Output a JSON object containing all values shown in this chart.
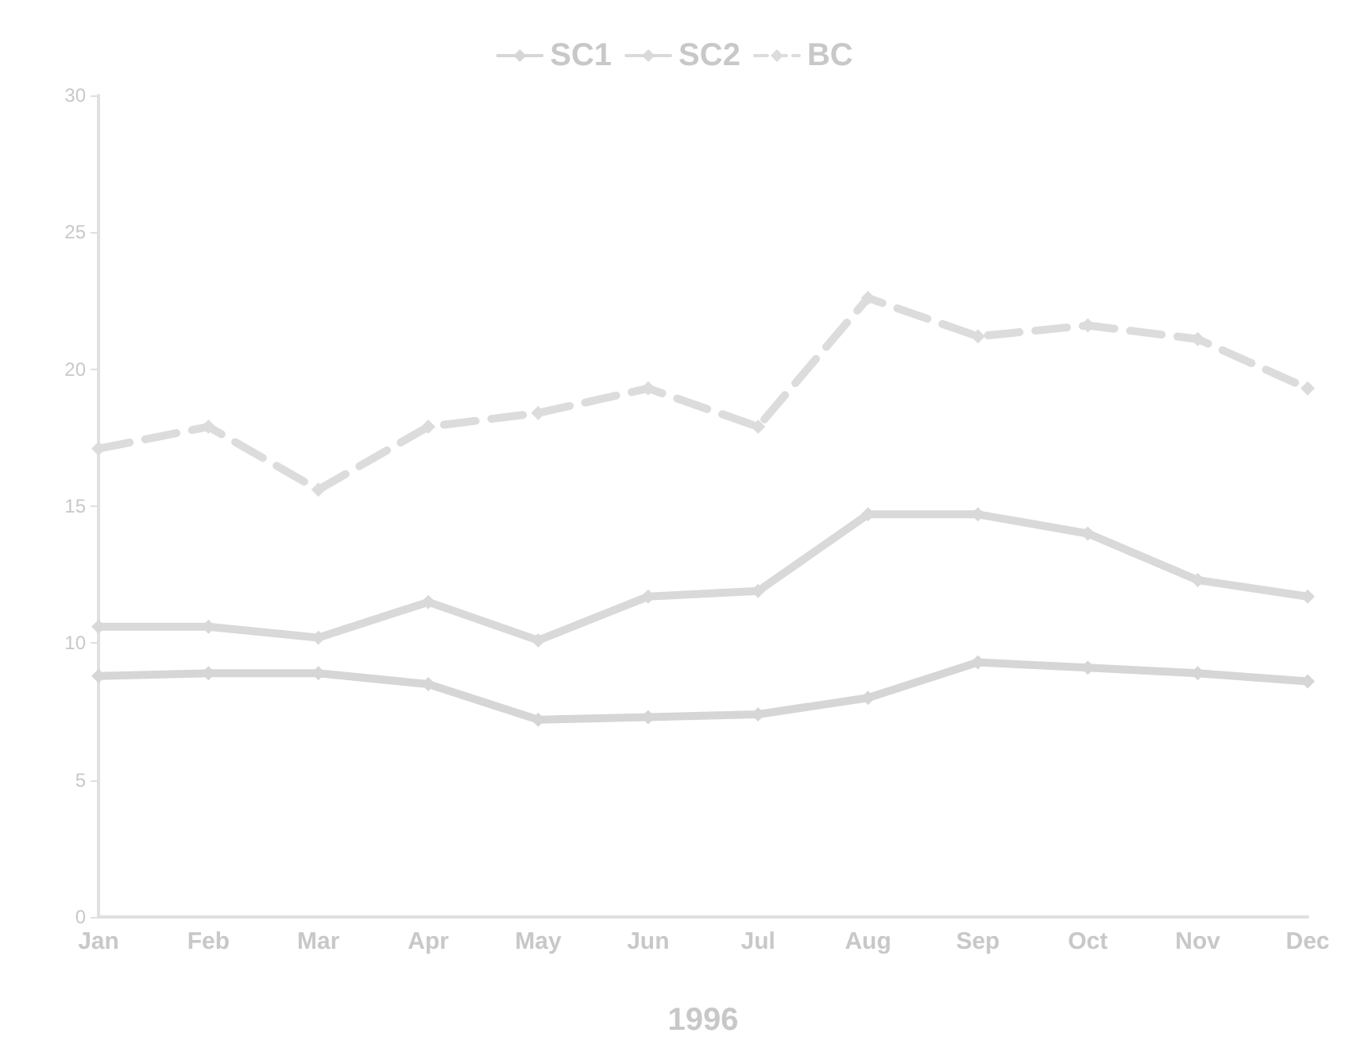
{
  "chart_data": {
    "type": "line",
    "xlabel": "1996",
    "categories": [
      "Jan",
      "Feb",
      "Mar",
      "Apr",
      "May",
      "Jun",
      "Jul",
      "Aug",
      "Sep",
      "Oct",
      "Nov",
      "Dec"
    ],
    "series": [
      {
        "name": "SC1",
        "color": "#d6d6d6",
        "line_style": "solid",
        "values": [
          8.8,
          8.9,
          8.9,
          8.5,
          7.2,
          7.3,
          7.4,
          8.0,
          9.3,
          9.1,
          8.9,
          8.6
        ]
      },
      {
        "name": "SC2",
        "color": "#d9d9d9",
        "line_style": "solid",
        "values": [
          10.6,
          10.6,
          10.2,
          11.5,
          10.1,
          11.7,
          11.9,
          14.7,
          14.7,
          14.0,
          12.3,
          11.7
        ]
      },
      {
        "name": "BC",
        "color": "#dcdcdc",
        "line_style": "dashed",
        "values": [
          17.1,
          17.9,
          15.6,
          17.9,
          18.4,
          19.3,
          17.9,
          22.6,
          21.2,
          21.6,
          21.1,
          19.3
        ]
      }
    ],
    "ylim": [
      0,
      30
    ],
    "yticks": [
      0,
      5,
      10,
      15,
      20,
      25,
      30
    ],
    "grid": false,
    "legend": "top",
    "marker": "diamond"
  }
}
